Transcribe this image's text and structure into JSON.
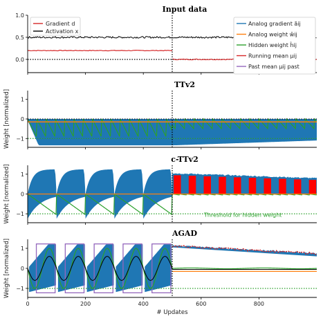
{
  "figure": {
    "ylabel": "Weight [normalized]",
    "xlabel": "# Updates"
  },
  "colors": {
    "gradient": "#d62728",
    "activation": "#000000",
    "analog_gradient": "#1f77b4",
    "analog_weight": "#ff7f0e",
    "hidden_weight": "#2ca02c",
    "running_mean": "#d62728",
    "past_mean": "#9467bd",
    "threshold": "#2ca02c",
    "fill_red": "#ff0000"
  },
  "chart_data": [
    {
      "type": "line",
      "title": "Input data",
      "xlim": [
        0,
        1000
      ],
      "ylim": [
        -0.3,
        1.0
      ],
      "yticks": [
        "0.0",
        "0.5",
        "1.0"
      ],
      "ytick_values": [
        0.0,
        0.5,
        1.0
      ],
      "legend_left": [
        "Gradient d",
        "Activation x"
      ],
      "legend_right": [
        "Analog gradient ãij",
        "Analog weight ŵij",
        "Hidden weight ĥij",
        "Running mean μij",
        "Past mean μij past"
      ],
      "series": [
        {
          "name": "Gradient d",
          "x": [
            0,
            500,
            500,
            1000
          ],
          "y": [
            0.2,
            0.2,
            0.0,
            0.0
          ]
        },
        {
          "name": "Activation x",
          "x": [
            0,
            1000
          ],
          "y": [
            0.5,
            0.5
          ]
        }
      ],
      "vline_x": 500
    },
    {
      "type": "line",
      "title": "TTv2",
      "xlim": [
        0,
        1000
      ],
      "ylim": [
        -1.45,
        1.45
      ],
      "yticks": [
        "−1",
        "0",
        "1"
      ],
      "ytick_values": [
        -1,
        0,
        1
      ],
      "threshold": -1,
      "analog_weight": -0.15,
      "vline_x": 500
    },
    {
      "type": "line",
      "title": "c-TTv2",
      "xlim": [
        0,
        1000
      ],
      "ylim": [
        -1.45,
        1.45
      ],
      "yticks": [
        "−1",
        "0",
        "1"
      ],
      "ytick_values": [
        -1,
        0,
        1
      ],
      "threshold": -1,
      "annotation": "Threshold for hidden weight",
      "vline_x": 500
    },
    {
      "type": "line",
      "title": "AGAD",
      "xlim": [
        0,
        1000
      ],
      "ylim": [
        -1.45,
        1.45
      ],
      "yticks": [
        "−1",
        "0",
        "1"
      ],
      "ytick_values": [
        -1,
        0,
        1
      ],
      "threshold": -1,
      "xticks": [
        "0",
        "200",
        "400",
        "600",
        "800"
      ],
      "xtick_values": [
        0,
        200,
        400,
        600,
        800
      ],
      "vline_x": 500
    }
  ]
}
